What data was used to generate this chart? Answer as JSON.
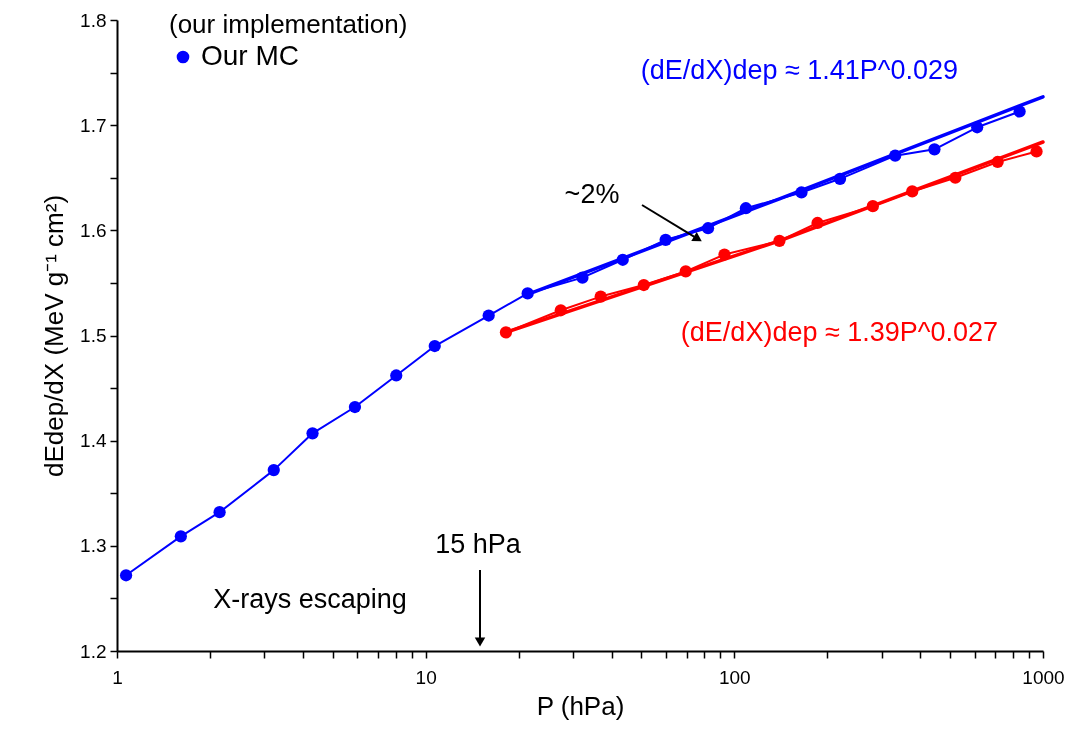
{
  "chart_data": {
    "type": "line",
    "xlabel": "P (hPa)",
    "ylabel": "dEdep/dX (MeV g⁻¹ cm²)",
    "legend_title": "(our implementation)",
    "legend": "top left",
    "marker": "circle",
    "grid": false,
    "log": "x",
    "xlim": [
      1,
      1000
    ],
    "ylim": [
      1.2,
      1.8
    ],
    "xticks": [
      1,
      {
        "value": 2,
        "label": null
      },
      {
        "value": 3,
        "label": null
      },
      {
        "value": 4,
        "label": null
      },
      {
        "value": 5,
        "label": null
      },
      {
        "value": 6,
        "label": null
      },
      {
        "value": 7,
        "label": null
      },
      {
        "value": 8,
        "label": null
      },
      {
        "value": 9,
        "label": null
      },
      10,
      {
        "value": 20,
        "label": null
      },
      {
        "value": 30,
        "label": null
      },
      {
        "value": 40,
        "label": null
      },
      {
        "value": 50,
        "label": null
      },
      {
        "value": 60,
        "label": null
      },
      {
        "value": 70,
        "label": null
      },
      {
        "value": 80,
        "label": null
      },
      {
        "value": 90,
        "label": null
      },
      100,
      {
        "value": 200,
        "label": null
      },
      {
        "value": 300,
        "label": null
      },
      {
        "value": 400,
        "label": null
      },
      {
        "value": 500,
        "label": null
      },
      {
        "value": 600,
        "label": null
      },
      {
        "value": 700,
        "label": null
      },
      {
        "value": 800,
        "label": null
      },
      {
        "value": 900,
        "label": null
      },
      1000
    ],
    "yticks": [
      1.2,
      {
        "value": 1.25,
        "label": null
      },
      1.3,
      {
        "value": 1.35,
        "label": null
      },
      1.4,
      {
        "value": 1.45,
        "label": null
      },
      1.5,
      {
        "value": 1.55,
        "label": null
      },
      1.6,
      {
        "value": 1.65,
        "label": null
      },
      1.7,
      {
        "value": 1.75,
        "label": null
      },
      1.8
    ],
    "series": [
      {
        "color": "#ff0000",
        "x": [
          18.2,
          27.4,
          36.9,
          50.9,
          69.6,
          92.9,
          140,
          186,
          281,
          377,
          520,
          713,
          953
        ],
        "values": [
          1.503,
          1.524,
          1.537,
          1.548,
          1.561,
          1.577,
          1.59,
          1.607,
          1.623,
          1.637,
          1.65,
          1.665,
          1.675
        ]
      },
      {
        "name": "Our MC",
        "color": "#0000ff",
        "x": [
          1.07,
          1.61,
          2.15,
          3.22,
          4.3,
          5.9,
          8.03,
          10.7,
          16.0,
          21.4,
          32.2,
          43.5,
          59.9,
          82.2,
          109,
          165,
          220,
          332,
          445,
          612,
          840
        ],
        "values": [
          1.272,
          1.309,
          1.332,
          1.372,
          1.407,
          1.432,
          1.462,
          1.49,
          1.519,
          1.54,
          1.555,
          1.572,
          1.591,
          1.602,
          1.621,
          1.636,
          1.649,
          1.671,
          1.677,
          1.698,
          1.713
        ]
      },
      {
        "type": "line",
        "marker": "none",
        "name": "(dE/dX)dep ≈ 1.41P^0.029",
        "color": "#0000ff",
        "x": [
          21.4,
          140,
          1000
        ],
        "values": [
          1.539,
          1.63,
          1.727
        ]
      },
      {
        "type": "line",
        "marker": "none",
        "name": "(dE/dX)dep ≈ 1.39P^0.027",
        "color": "#ff0000",
        "x": [
          18.2,
          140,
          1000
        ],
        "values": [
          1.503,
          1.59,
          1.684
        ]
      }
    ],
    "annotations": [
      "~2%",
      "15 hPa",
      "X-rays escaping"
    ]
  }
}
